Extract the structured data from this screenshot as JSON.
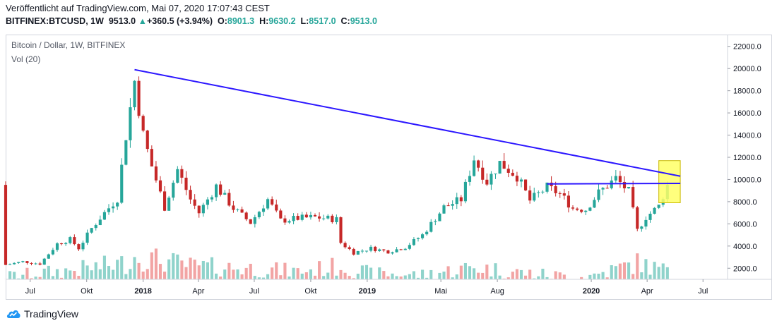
{
  "header": {
    "published": "Veröffentlicht auf TradingView.com, Mai 07, 2020 17:07:43 CEST",
    "symbol": "BITFINEX:BTCUSD, 1W",
    "price": "9513.0",
    "arrow": "▲",
    "change": "+360.5 (+3.94%)",
    "open_label": "O:",
    "open": "8901.3",
    "high_label": "H:",
    "high": "9630.2",
    "low_label": "L:",
    "low": "8517.0",
    "close_label": "C:",
    "close": "9513.0"
  },
  "chart_title": "Bitcoin / Dollar, 1W, BITFINEX",
  "volume_label": "Vol (20)",
  "brand": "TradingView",
  "colors": {
    "up": "#26a69a",
    "down": "#c62828",
    "up_vol": "#8fd3cb",
    "down_vol": "#f2a4a4",
    "trendline": "#2c17ff",
    "highlight": "#ffff66"
  },
  "chart_data": {
    "type": "candlestick",
    "y_ticks": [
      "2000.0",
      "4000.0",
      "6000.0",
      "8000.0",
      "10000.0",
      "12000.0",
      "14000.0",
      "16000.0",
      "18000.0",
      "20000.0",
      "22000.0"
    ],
    "ylim": [
      1000,
      23000
    ],
    "x_ticks": [
      {
        "label": "Jul",
        "date": "2017-07-01",
        "bold": false
      },
      {
        "label": "Okt",
        "date": "2017-10-01",
        "bold": false
      },
      {
        "label": "2018",
        "date": "2018-01-01",
        "bold": true
      },
      {
        "label": "Apr",
        "date": "2018-04-01",
        "bold": false
      },
      {
        "label": "Jul",
        "date": "2018-07-01",
        "bold": false
      },
      {
        "label": "Okt",
        "date": "2018-10-01",
        "bold": false
      },
      {
        "label": "2019",
        "date": "2019-01-01",
        "bold": true
      },
      {
        "label": "Mai",
        "date": "2019-05-01",
        "bold": false
      },
      {
        "label": "Aug",
        "date": "2019-08-01",
        "bold": false
      },
      {
        "label": "2020",
        "date": "2020-01-01",
        "bold": true
      },
      {
        "label": "Apr",
        "date": "2020-04-01",
        "bold": false
      },
      {
        "label": "Jul",
        "date": "2020-07-01",
        "bold": false
      }
    ],
    "x_range": [
      "2017-05-22",
      "2020-08-10"
    ],
    "anchors": [
      [
        "2017-05-22",
        2300
      ],
      [
        "2017-06-19",
        2600
      ],
      [
        "2017-07-17",
        2400
      ],
      [
        "2017-08-14",
        4200
      ],
      [
        "2017-09-04",
        4600
      ],
      [
        "2017-09-18",
        3800
      ],
      [
        "2017-10-09",
        5600
      ],
      [
        "2017-10-30",
        7000
      ],
      [
        "2017-11-20",
        8300
      ],
      [
        "2017-12-04",
        14000
      ],
      [
        "2017-12-18",
        18900
      ],
      [
        "2018-01-01",
        14000
      ],
      [
        "2018-01-15",
        11200
      ],
      [
        "2018-02-05",
        7500
      ],
      [
        "2018-02-26",
        10900
      ],
      [
        "2018-03-19",
        8200
      ],
      [
        "2018-04-02",
        7000
      ],
      [
        "2018-04-30",
        9400
      ],
      [
        "2018-05-28",
        7400
      ],
      [
        "2018-06-25",
        6100
      ],
      [
        "2018-07-23",
        8200
      ],
      [
        "2018-08-13",
        6300
      ],
      [
        "2018-09-10",
        6500
      ],
      [
        "2018-10-08",
        6600
      ],
      [
        "2018-11-12",
        6400
      ],
      [
        "2018-11-19",
        4300
      ],
      [
        "2018-12-10",
        3400
      ],
      [
        "2019-01-07",
        3800
      ],
      [
        "2019-02-04",
        3500
      ],
      [
        "2019-03-04",
        3900
      ],
      [
        "2019-04-01",
        5000
      ],
      [
        "2019-05-06",
        7500
      ],
      [
        "2019-06-03",
        8200
      ],
      [
        "2019-06-24",
        11900
      ],
      [
        "2019-07-15",
        9800
      ],
      [
        "2019-08-05",
        11500
      ],
      [
        "2019-09-02",
        10300
      ],
      [
        "2019-09-23",
        8100
      ],
      [
        "2019-10-21",
        9300
      ],
      [
        "2019-11-11",
        8700
      ],
      [
        "2019-12-02",
        7400
      ],
      [
        "2019-12-23",
        7300
      ],
      [
        "2020-01-13",
        8800
      ],
      [
        "2020-02-10",
        10100
      ],
      [
        "2020-03-02",
        8900
      ],
      [
        "2020-03-16",
        5400
      ],
      [
        "2020-03-30",
        6600
      ],
      [
        "2020-04-20",
        7600
      ],
      [
        "2020-05-04",
        9513
      ]
    ],
    "volume_anchors": [
      [
        "2017-05-22",
        1350
      ],
      [
        "2017-09-04",
        1900
      ],
      [
        "2017-12-04",
        2600
      ],
      [
        "2017-12-18",
        3200
      ],
      [
        "2018-02-05",
        2800
      ],
      [
        "2018-03-19",
        2300
      ],
      [
        "2018-06-25",
        2100
      ],
      [
        "2018-09-10",
        1800
      ],
      [
        "2018-11-19",
        2300
      ],
      [
        "2019-01-07",
        1600
      ],
      [
        "2019-04-01",
        1500
      ],
      [
        "2019-06-24",
        2200
      ],
      [
        "2019-09-23",
        1600
      ],
      [
        "2019-12-23",
        1250
      ],
      [
        "2020-03-16",
        2600
      ],
      [
        "2020-05-04",
        1800
      ]
    ],
    "trendlines": [
      {
        "from": [
          "2017-12-18",
          19900
        ],
        "to": [
          "2020-05-25",
          10300
        ]
      },
      {
        "from": [
          "2019-10-21",
          9600
        ],
        "to": [
          "2020-05-25",
          9650
        ]
      }
    ],
    "highlight_box": {
      "from": "2020-04-20",
      "to": "2020-05-25",
      "low": 7900,
      "high": 11700
    },
    "last_price": 9513.0
  }
}
